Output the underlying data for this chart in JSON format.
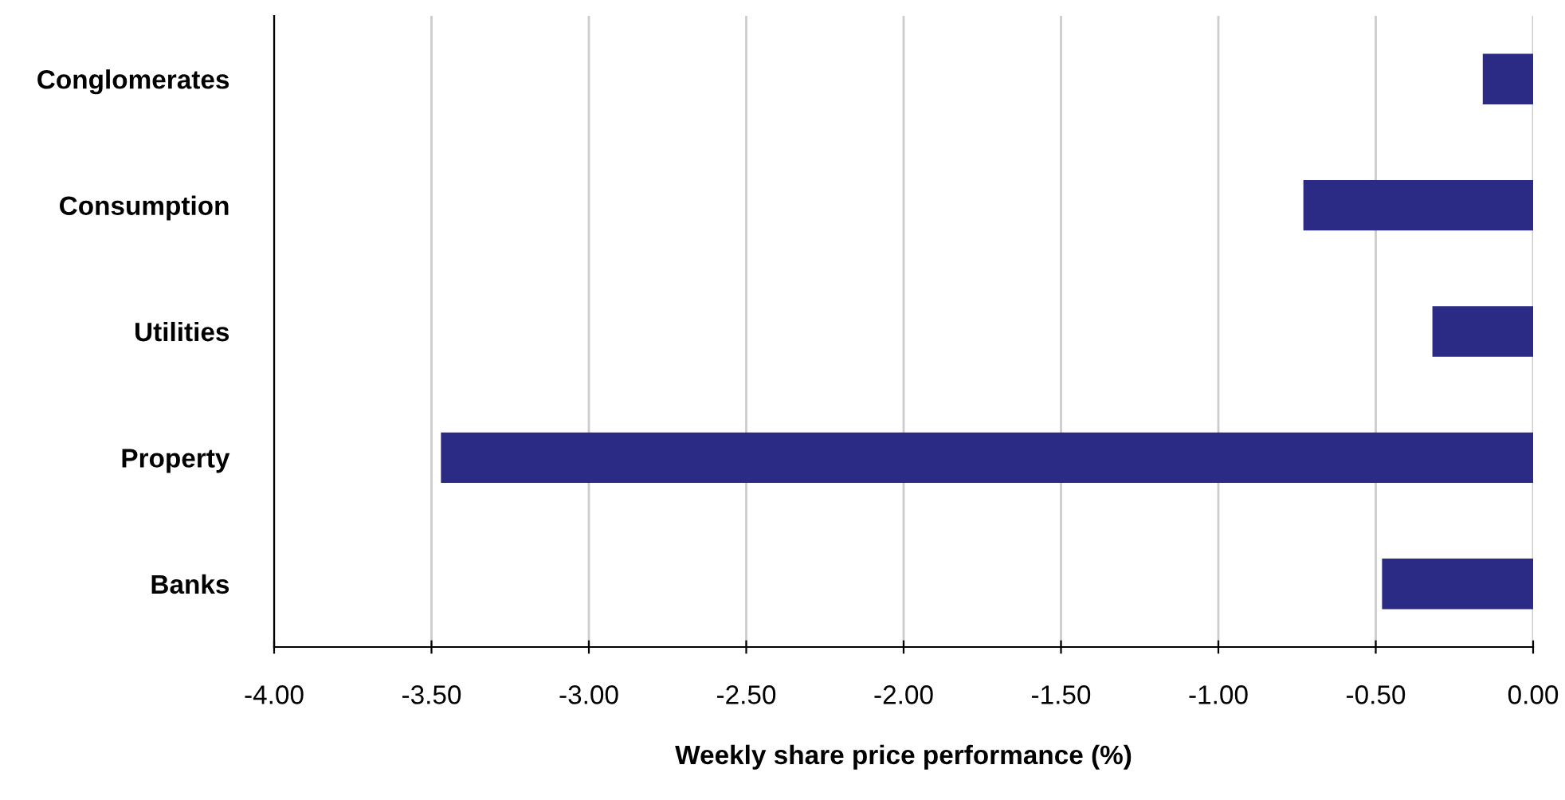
{
  "chart_data": {
    "type": "bar",
    "orientation": "horizontal",
    "xlabel": "Weekly share price performance (%)",
    "categories": [
      "Conglomerates",
      "Consumption",
      "Utilities",
      "Property",
      "Banks"
    ],
    "values": [
      -0.16,
      -0.73,
      -0.32,
      -3.47,
      -0.48
    ],
    "color": "#2b2b85",
    "xlim": [
      -4,
      0
    ],
    "xticks": [
      {
        "value": -4,
        "label": "-4.00"
      },
      {
        "value": -3.5,
        "label": "-3.50"
      },
      {
        "value": -3,
        "label": "-3.00"
      },
      {
        "value": -2.5,
        "label": "-2.50"
      },
      {
        "value": -2,
        "label": "-2.00"
      },
      {
        "value": -1.5,
        "label": "-1.50"
      },
      {
        "value": -1,
        "label": "-1.00"
      },
      {
        "value": -0.5,
        "label": "-0.50"
      },
      {
        "value": 0,
        "label": "0.00"
      }
    ],
    "grid": "x",
    "legend": false
  }
}
